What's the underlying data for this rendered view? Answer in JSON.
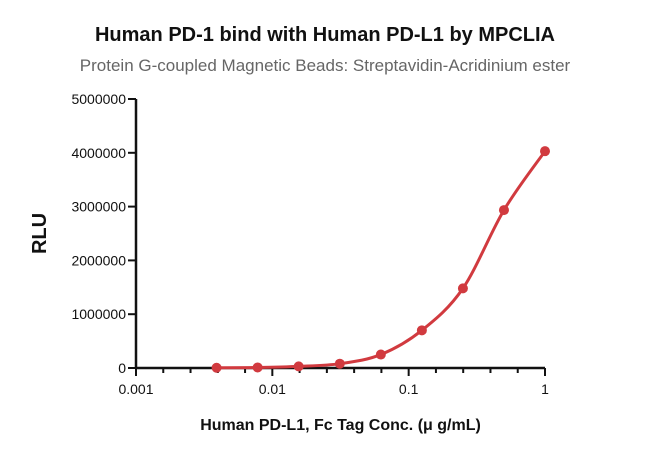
{
  "chart_data": {
    "type": "line",
    "title": "Human PD-1 bind with Human PD-L1 by MPCLIA",
    "subtitle": "Protein G-coupled Magnetic Beads: Streptavidin-Acridinium ester",
    "xlabel": "Human PD-L1, Fc Tag Conc. (μ g/mL)",
    "ylabel": "RLU",
    "xscale": "log",
    "xlim": [
      0.001,
      1
    ],
    "ylim": [
      0,
      5000000
    ],
    "xticks": [
      0.001,
      0.01,
      0.1,
      1
    ],
    "xtick_labels": [
      "0.001",
      "0.01",
      "0.1",
      "1"
    ],
    "yticks": [
      0,
      1000000,
      2000000,
      3000000,
      4000000,
      5000000
    ],
    "ytick_labels": [
      "0",
      "1000000",
      "2000000",
      "3000000",
      "4000000",
      "5000000"
    ],
    "grid": false,
    "series": [
      {
        "name": "Human PD-L1",
        "color": "#d13a3f",
        "x": [
          0.0039,
          0.0078,
          0.0156,
          0.03125,
          0.0625,
          0.125,
          0.25,
          0.5,
          1
        ],
        "y": [
          5000,
          10000,
          30000,
          80000,
          250000,
          700000,
          1480000,
          2935000,
          4030000
        ]
      }
    ]
  }
}
